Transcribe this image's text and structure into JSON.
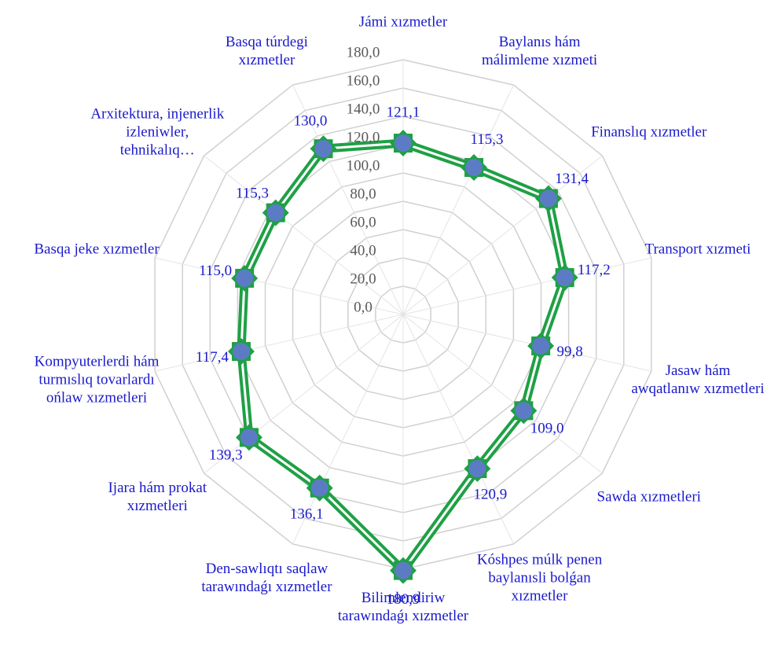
{
  "chart_data": {
    "type": "radar",
    "categories": [
      "Jámi xızmetler",
      "Baylanıs hám málimleme xızmeti",
      "Finanslıq xızmetler",
      "Transport xızmeti",
      "Jasaw hám awqatlanıw xızmetleri",
      "Sawda xızmetleri",
      "Kóshpes múlk penen baylanısli bolǵan xızmetler",
      "Bilimlendiriw tarawındaǵı xızmetler",
      "Den-sawlıqtı saqlaw tarawındaǵı xızmetler",
      "Ijara hám prokat xızmetleri",
      "Kompyuterlerdi hám turmıslıq tovarlardı ońlaw xızmetleri",
      "Basqa jeke xızmetler",
      "Arxitektura, injenerlik izleniwler, tehnikalıq…",
      "Basqa túrdegi xızmetler"
    ],
    "values": [
      121.1,
      115.3,
      131.4,
      117.2,
      99.8,
      109.0,
      120.9,
      180.9,
      136.1,
      139.3,
      117.4,
      115.0,
      115.3,
      130.0
    ],
    "value_labels": [
      "121,1",
      "115,3",
      "131,4",
      "117,2",
      "99,8",
      "109,0",
      "120,9",
      "180,9",
      "136,1",
      "139,3",
      "117,4",
      "115,0",
      "115,3",
      "130,0"
    ],
    "color": "#1fa045",
    "marker_color": "#5b7cc4",
    "rlim": [
      0,
      180
    ],
    "rticks": [
      {
        "value": 0,
        "label": "0,0"
      },
      {
        "value": 20,
        "label": "20,0"
      },
      {
        "value": 40,
        "label": "40,0"
      },
      {
        "value": 60,
        "label": "60,0"
      },
      {
        "value": 80,
        "label": "80,0"
      },
      {
        "value": 100,
        "label": "100,0"
      },
      {
        "value": 120,
        "label": "120,0"
      },
      {
        "value": 140,
        "label": "140,0"
      },
      {
        "value": 160,
        "label": "160,0"
      },
      {
        "value": 180,
        "label": "180,0"
      }
    ],
    "grid": true
  }
}
